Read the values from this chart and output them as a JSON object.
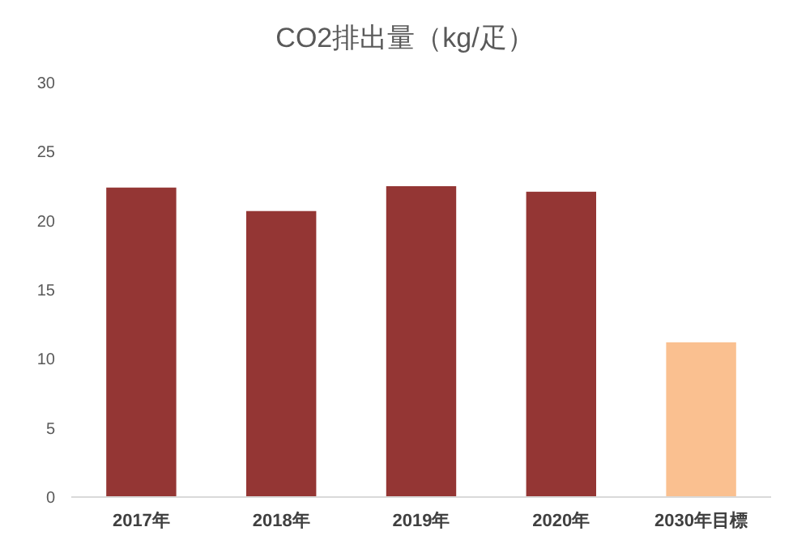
{
  "chart_data": {
    "type": "bar",
    "title": "CO2排出量（kg/疋）",
    "categories": [
      "2017年",
      "2018年",
      "2019年",
      "2020年",
      "2030年目標"
    ],
    "values": [
      22.4,
      20.7,
      22.5,
      22.1,
      11.2
    ],
    "colors": [
      "#943634",
      "#943634",
      "#943634",
      "#943634",
      "#fac090"
    ],
    "ylim": [
      0,
      30
    ],
    "yticks": [
      0,
      5,
      10,
      15,
      20,
      25,
      30
    ],
    "grid": false
  }
}
